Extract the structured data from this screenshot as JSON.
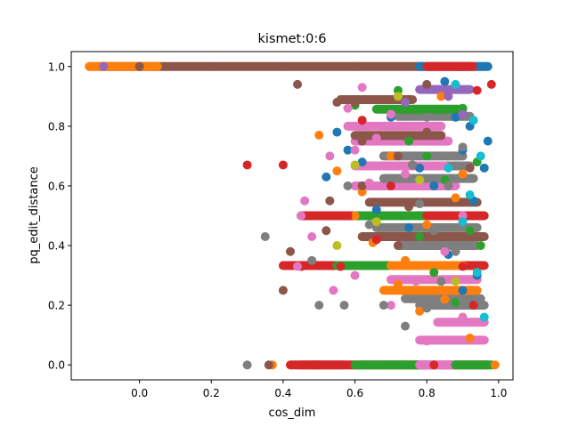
{
  "chart_data": {
    "type": "scatter",
    "title": "kismet:0:6",
    "xlabel": "cos_dim",
    "ylabel": "pq_edit_distance",
    "xlim": [
      -0.19,
      1.04
    ],
    "ylim": [
      -0.05,
      1.05
    ],
    "xticks": [
      0.0,
      0.2,
      0.4,
      0.6,
      0.8,
      1.0
    ],
    "xtick_labels": [
      "0.0",
      "0.2",
      "0.4",
      "0.6",
      "0.8",
      "1.0"
    ],
    "yticks": [
      0.0,
      0.2,
      0.4,
      0.6,
      0.8,
      1.0
    ],
    "ytick_labels": [
      "0.0",
      "0.2",
      "0.4",
      "0.6",
      "0.8",
      "1.0"
    ],
    "grid": false,
    "legend": "none",
    "colors": [
      "#1f77b4",
      "#ff7f0e",
      "#2ca02c",
      "#d62728",
      "#9467bd",
      "#8c564b",
      "#e377c2",
      "#7f7f7f",
      "#bcbd22",
      "#17becf"
    ],
    "series": [
      {
        "color": "#1f77b4",
        "points": [
          [
            0.95,
            1.0
          ],
          [
            0.85,
            0.95
          ],
          [
            0.88,
            0.83
          ],
          [
            0.92,
            0.8
          ],
          [
            0.9,
            0.72
          ],
          [
            0.96,
            0.66
          ],
          [
            0.55,
            0.78
          ],
          [
            0.62,
            0.68
          ],
          [
            0.82,
            0.6
          ],
          [
            0.93,
            0.55
          ],
          [
            0.75,
            0.46
          ],
          [
            0.86,
            0.37
          ],
          [
            0.94,
            0.3
          ],
          [
            0.7,
            0.83
          ],
          [
            0.58,
            0.72
          ],
          [
            0.78,
            0.66
          ],
          [
            0.9,
            0.25
          ],
          [
            0.97,
            0.75
          ],
          [
            0.52,
            0.63
          ],
          [
            0.66,
            0.52
          ]
        ]
      },
      {
        "color": "#ff7f0e",
        "points": [
          [
            -0.13,
            1.0
          ],
          [
            0.99,
            0.0
          ],
          [
            0.37,
            0.0
          ],
          [
            0.5,
            0.77
          ],
          [
            0.62,
            0.58
          ],
          [
            0.72,
            0.27
          ],
          [
            0.85,
            0.22
          ],
          [
            0.8,
            0.47
          ],
          [
            0.65,
            0.41
          ],
          [
            0.9,
            0.64
          ],
          [
            0.92,
            0.09
          ],
          [
            0.55,
            0.65
          ],
          [
            0.74,
            0.35
          ],
          [
            0.88,
            0.56
          ],
          [
            0.78,
            0.18
          ],
          [
            0.6,
            0.5
          ],
          [
            0.7,
            0.7
          ],
          [
            0.84,
            0.9
          ]
        ]
      },
      {
        "color": "#2ca02c",
        "points": [
          [
            0.72,
            0.92
          ],
          [
            0.9,
            0.86
          ],
          [
            0.6,
            0.87
          ],
          [
            0.75,
            0.75
          ],
          [
            0.68,
            0.5
          ],
          [
            0.56,
            0.33
          ],
          [
            0.82,
            0.31
          ],
          [
            0.94,
            0.68
          ],
          [
            0.62,
            0.0
          ],
          [
            0.85,
            0.62
          ],
          [
            0.78,
            0.43
          ],
          [
            0.95,
            0.4
          ],
          [
            0.7,
            0.0
          ],
          [
            0.88,
            0.21
          ],
          [
            0.8,
            0.7
          ],
          [
            0.92,
            0.45
          ]
        ]
      },
      {
        "color": "#d62728",
        "points": [
          [
            0.9,
            1.0
          ],
          [
            0.98,
            0.94
          ],
          [
            0.94,
            0.92
          ],
          [
            0.3,
            0.67
          ],
          [
            0.4,
            0.67
          ],
          [
            0.45,
            0.5
          ],
          [
            0.45,
            0.33
          ],
          [
            0.5,
            0.0
          ],
          [
            0.58,
            0.5
          ],
          [
            0.66,
            0.42
          ],
          [
            0.86,
            0.5
          ],
          [
            0.9,
            0.33
          ],
          [
            0.82,
            0.0
          ],
          [
            0.76,
            0.67
          ],
          [
            0.56,
            0.33
          ],
          [
            0.93,
            0.2
          ],
          [
            0.62,
            0.82
          ],
          [
            0.7,
            0.6
          ]
        ]
      },
      {
        "color": "#9467bd",
        "points": [
          [
            -0.1,
            1.0
          ],
          [
            0.8,
            0.93
          ],
          [
            0.86,
            0.9
          ],
          [
            0.74,
            0.88
          ],
          [
            0.9,
            0.84
          ]
        ]
      },
      {
        "color": "#8c564b",
        "points": [
          [
            0.0,
            1.0
          ],
          [
            0.2,
            1.0
          ],
          [
            0.4,
            1.0
          ],
          [
            0.6,
            1.0
          ],
          [
            0.8,
            0.94
          ],
          [
            0.44,
            0.94
          ],
          [
            0.55,
            0.88
          ],
          [
            0.53,
            0.55
          ],
          [
            0.62,
            0.75
          ],
          [
            0.72,
            0.7
          ],
          [
            0.42,
            0.38
          ],
          [
            0.52,
            0.45
          ],
          [
            0.62,
            0.6
          ],
          [
            0.8,
            0.78
          ],
          [
            0.72,
            0.4
          ],
          [
            0.4,
            0.25
          ],
          [
            0.6,
            0.88
          ],
          [
            0.75,
            0.53
          ],
          [
            0.36,
            0.0
          ],
          [
            0.92,
            0.66
          ]
        ]
      },
      {
        "color": "#e377c2",
        "points": [
          [
            0.62,
            0.93
          ],
          [
            0.7,
            0.84
          ],
          [
            0.6,
            0.72
          ],
          [
            0.53,
            0.7
          ],
          [
            0.46,
            0.55
          ],
          [
            0.45,
            0.5
          ],
          [
            0.48,
            0.43
          ],
          [
            0.44,
            0.33
          ],
          [
            0.8,
            0.08
          ],
          [
            0.9,
            0.16
          ],
          [
            0.64,
            0.61
          ],
          [
            0.77,
            0.28
          ],
          [
            0.7,
            0.2
          ],
          [
            0.6,
            0.3
          ],
          [
            0.54,
            0.25
          ],
          [
            0.66,
            0.76
          ],
          [
            0.74,
            0.64
          ],
          [
            0.58,
            0.86
          ],
          [
            0.85,
            0.38
          ],
          [
            0.9,
            0.5
          ]
        ]
      },
      {
        "color": "#7f7f7f",
        "points": [
          [
            0.8,
            0.83
          ],
          [
            0.84,
            0.7
          ],
          [
            0.9,
            0.73
          ],
          [
            0.76,
            0.67
          ],
          [
            0.86,
            0.6
          ],
          [
            0.78,
            0.54
          ],
          [
            0.82,
            0.45
          ],
          [
            0.88,
            0.38
          ],
          [
            0.84,
            0.28
          ],
          [
            0.9,
            0.22
          ],
          [
            0.8,
            0.19
          ],
          [
            0.5,
            0.2
          ],
          [
            0.57,
            0.2
          ],
          [
            0.68,
            0.2
          ],
          [
            0.3,
            0.0
          ],
          [
            0.35,
            0.43
          ],
          [
            0.48,
            0.35
          ],
          [
            0.64,
            0.47
          ],
          [
            0.58,
            0.6
          ],
          [
            0.74,
            0.13
          ]
        ]
      },
      {
        "color": "#bcbd22",
        "points": [
          [
            0.55,
            0.4
          ],
          [
            0.6,
            0.67
          ],
          [
            0.78,
            0.62
          ],
          [
            0.88,
            0.28
          ],
          [
            0.72,
            0.9
          ],
          [
            0.66,
            0.48
          ]
        ]
      },
      {
        "color": "#17becf",
        "points": [
          [
            0.88,
            0.94
          ],
          [
            0.95,
            0.7
          ],
          [
            0.92,
            0.57
          ],
          [
            0.94,
            0.31
          ],
          [
            0.96,
            0.16
          ],
          [
            0.9,
            0.48
          ],
          [
            0.86,
            0.66
          ],
          [
            0.93,
            0.82
          ]
        ]
      }
    ],
    "bands": [
      {
        "color": "#8c564b",
        "x": [
          -0.11,
          0.79
        ],
        "y": 1.0
      },
      {
        "color": "#1f77b4",
        "x": [
          0.78,
          0.97
        ],
        "y": 1.0
      },
      {
        "color": "#d62728",
        "x": [
          0.8,
          0.93
        ],
        "y": 1.0
      },
      {
        "color": "#ff7f0e",
        "x": [
          -0.14,
          0.05
        ],
        "y": 1.0
      },
      {
        "color": "#d62728",
        "x": [
          0.45,
          0.97
        ],
        "y": 0.0
      },
      {
        "color": "#2ca02c",
        "x": [
          0.6,
          0.8
        ],
        "y": 0.0
      },
      {
        "color": "#d62728",
        "x": [
          0.42,
          0.57
        ],
        "y": 0.0
      },
      {
        "color": "#e377c2",
        "x": [
          0.78,
          0.96
        ],
        "y": 0.0
      },
      {
        "color": "#2ca02c",
        "x": [
          0.88,
          0.98
        ],
        "y": 0.0
      },
      {
        "color": "#e377c2",
        "x": [
          0.78,
          0.96
        ],
        "y": 0.083
      },
      {
        "color": "#e377c2",
        "x": [
          0.83,
          0.96
        ],
        "y": 0.143
      },
      {
        "color": "#7f7f7f",
        "x": [
          0.78,
          0.96
        ],
        "y": 0.2
      },
      {
        "color": "#7f7f7f",
        "x": [
          0.74,
          0.95
        ],
        "y": 0.222
      },
      {
        "color": "#ff7f0e",
        "x": [
          0.68,
          0.94
        ],
        "y": 0.25
      },
      {
        "color": "#e377c2",
        "x": [
          0.7,
          0.94
        ],
        "y": 0.286
      },
      {
        "color": "#d62728",
        "x": [
          0.4,
          0.58
        ],
        "y": 0.333
      },
      {
        "color": "#2ca02c",
        "x": [
          0.55,
          0.75
        ],
        "y": 0.333
      },
      {
        "color": "#d62728",
        "x": [
          0.84,
          0.96
        ],
        "y": 0.333
      },
      {
        "color": "#ff7f0e",
        "x": [
          0.7,
          0.9
        ],
        "y": 0.333
      },
      {
        "color": "#7f7f7f",
        "x": [
          0.72,
          0.94
        ],
        "y": 0.4
      },
      {
        "color": "#8c564b",
        "x": [
          0.62,
          0.96
        ],
        "y": 0.43
      },
      {
        "color": "#7f7f7f",
        "x": [
          0.66,
          0.94
        ],
        "y": 0.46
      },
      {
        "color": "#8c564b",
        "x": [
          0.62,
          0.92
        ],
        "y": 0.5
      },
      {
        "color": "#d62728",
        "x": [
          0.45,
          0.6
        ],
        "y": 0.5
      },
      {
        "color": "#2ca02c",
        "x": [
          0.6,
          0.8
        ],
        "y": 0.5
      },
      {
        "color": "#d62728",
        "x": [
          0.8,
          0.96
        ],
        "y": 0.5
      },
      {
        "color": "#8c564b",
        "x": [
          0.64,
          0.94
        ],
        "y": 0.545
      },
      {
        "color": "#e377c2",
        "x": [
          0.6,
          0.88
        ],
        "y": 0.6
      },
      {
        "color": "#7f7f7f",
        "x": [
          0.68,
          0.93
        ],
        "y": 0.625
      },
      {
        "color": "#7f7f7f",
        "x": [
          0.7,
          0.92
        ],
        "y": 0.667
      },
      {
        "color": "#e377c2",
        "x": [
          0.6,
          0.85
        ],
        "y": 0.667
      },
      {
        "color": "#7f7f7f",
        "x": [
          0.68,
          0.9
        ],
        "y": 0.7
      },
      {
        "color": "#e377c2",
        "x": [
          0.6,
          0.86
        ],
        "y": 0.75
      },
      {
        "color": "#8c564b",
        "x": [
          0.6,
          0.84
        ],
        "y": 0.769
      },
      {
        "color": "#e377c2",
        "x": [
          0.58,
          0.84
        ],
        "y": 0.8
      },
      {
        "color": "#7f7f7f",
        "x": [
          0.72,
          0.92
        ],
        "y": 0.833
      },
      {
        "color": "#2ca02c",
        "x": [
          0.66,
          0.9
        ],
        "y": 0.857
      },
      {
        "color": "#8c564b",
        "x": [
          0.56,
          0.76
        ],
        "y": 0.889
      },
      {
        "color": "#9467bd",
        "x": [
          0.78,
          0.92
        ],
        "y": 0.923
      }
    ]
  }
}
